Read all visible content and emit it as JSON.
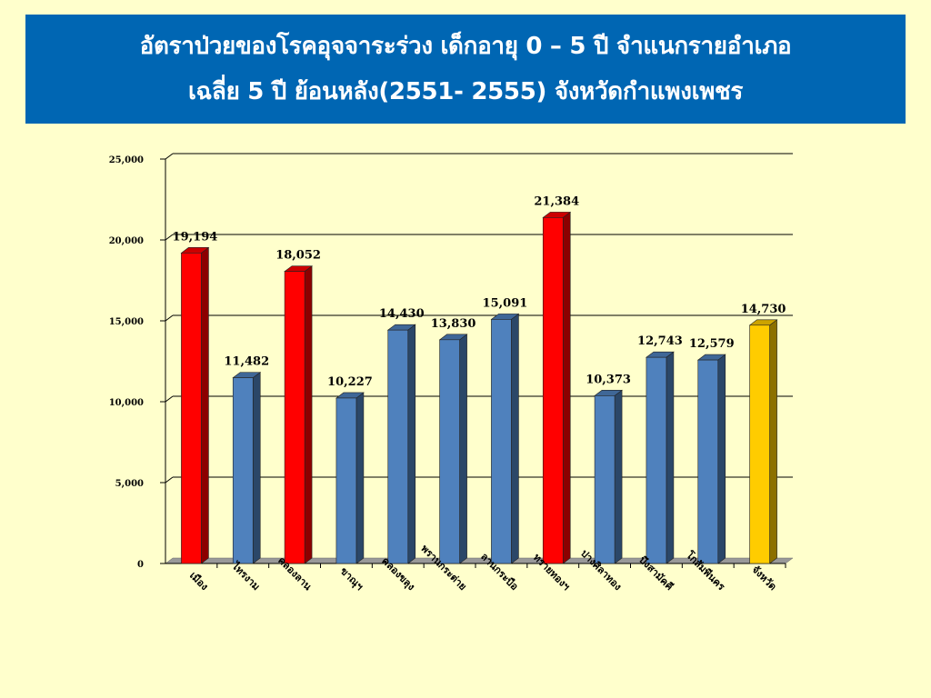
{
  "title": {
    "line1": "อัตราป่วยของโรคอุจจาระร่วง เด็กอายุ 0 – 5 ปี จำแนกรายอำเภอ",
    "line2": "เฉลี่ย 5 ปี ย้อนหลัง(2551- 2555) จังหวัดกำแพงเพชร"
  },
  "chart_data": {
    "type": "bar",
    "title": "อัตราป่วยของโรคอุจจาระร่วง เด็กอายุ 0 – 5 ปี จำแนกรายอำเภอ เฉลี่ย 5 ปี ย้อนหลัง(2551- 2555) จังหวัดกำแพงเพชร",
    "categories": [
      "เมือง",
      "ไทรงาม",
      "คลองลาน",
      "ขาณุฯ",
      "คลองขลุง",
      "พรานกระต่าย",
      "ลานกระบือ",
      "ทรายทองฯ",
      "ปางศิลาทอง",
      "บึงสามัคคี",
      "โกสัมพีนคร",
      "จังหวัด"
    ],
    "values": [
      19194,
      11482,
      18052,
      10227,
      14430,
      13830,
      15091,
      21384,
      10373,
      12743,
      12579,
      14730
    ],
    "value_labels": [
      "19,194",
      "11,482",
      "18,052",
      "10,227",
      "14,430",
      "13,830",
      "15,091",
      "21,384",
      "10,373",
      "12,743",
      "12,579",
      "14,730"
    ],
    "bar_colors": [
      "#ff0000",
      "#4f81bd",
      "#ff0000",
      "#4f81bd",
      "#4f81bd",
      "#4f81bd",
      "#4f81bd",
      "#ff0000",
      "#4f81bd",
      "#4f81bd",
      "#4f81bd",
      "#ffcc00"
    ],
    "ylim": [
      0,
      25000
    ],
    "yticks": [
      0,
      5000,
      10000,
      15000,
      20000,
      25000
    ],
    "ytick_labels": [
      "0",
      "5,000",
      "10,000",
      "15,000",
      "20,000",
      "25,000"
    ],
    "xlabel": "",
    "ylabel": "",
    "grid": true,
    "style": "3d-column"
  }
}
